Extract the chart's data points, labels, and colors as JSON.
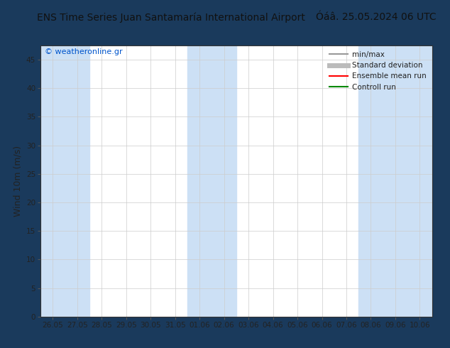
{
  "title_left": "ENS Time Series Juan Santamaría International Airport",
  "title_right": "Óáâ. 25.05.2024 06 UTC",
  "ylabel": "Wind 10m (m/s)",
  "ylim": [
    0,
    47.5
  ],
  "yticks": [
    0,
    5,
    10,
    15,
    20,
    25,
    30,
    35,
    40,
    45
  ],
  "xtick_labels": [
    "26.05",
    "27.05",
    "28.05",
    "29.05",
    "30.05",
    "31.05",
    "01.06",
    "02.06",
    "03.06",
    "04.06",
    "05.06",
    "06.06",
    "07.06",
    "08.06",
    "09.06",
    "10.06"
  ],
  "bg_color": "#1a3a5c",
  "plot_bg_color": "#ffffff",
  "stripe_color": "#cce0f5",
  "stripe_indices": [
    0,
    1,
    6,
    7,
    13,
    14,
    15
  ],
  "watermark": "© weatheronline.gr",
  "watermark_color": "#0055cc",
  "legend_items": [
    {
      "label": "min/max",
      "color": "#999999",
      "lw": 1.5,
      "style": "-"
    },
    {
      "label": "Standard deviation",
      "color": "#bbbbbb",
      "lw": 5,
      "style": "-"
    },
    {
      "label": "Ensemble mean run",
      "color": "#ff0000",
      "lw": 1.5,
      "style": "-"
    },
    {
      "label": "Controll run",
      "color": "#008800",
      "lw": 1.5,
      "style": "-"
    }
  ],
  "title_fontsize": 10,
  "ylabel_fontsize": 9,
  "tick_fontsize": 7.5,
  "legend_fontsize": 7.5,
  "watermark_fontsize": 8
}
